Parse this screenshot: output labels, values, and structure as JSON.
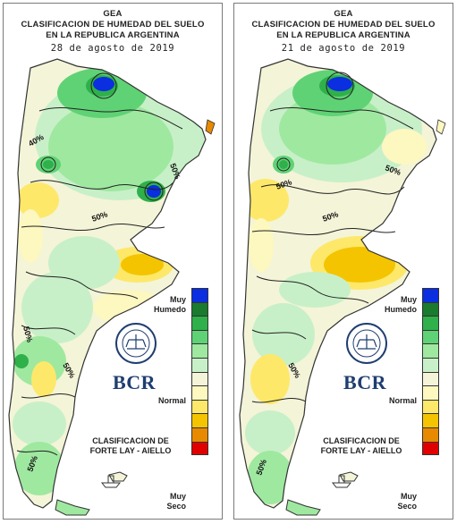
{
  "legend": {
    "colors": [
      "#0a2ee0",
      "#1a7a2e",
      "#2fb04a",
      "#5fd275",
      "#9fe8a0",
      "#c8f0c8",
      "#f4f4d8",
      "#fdf7c0",
      "#fde86a",
      "#f4c400",
      "#e88a00",
      "#e00000"
    ],
    "label_humid": [
      "Muy",
      "Humedo"
    ],
    "label_normal": "Normal",
    "label_dry": [
      "Muy",
      "Seco"
    ]
  },
  "panels": [
    {
      "org": "GEA",
      "title_line1": "CLASIFICACION DE HUMEDAD DEL SUELO",
      "title_line2": "EN LA REPUBLICA ARGENTINA",
      "date": "28 de agosto de 2019",
      "contour_labels": [
        "40%",
        "50%",
        "50%",
        "50%",
        "50%",
        "50%"
      ],
      "logo_text": "BCR",
      "classification": [
        "CLASIFICACION DE",
        "FORTE LAY - AIELLO"
      ]
    },
    {
      "org": "GEA",
      "title_line1": "CLASIFICACION DE HUMEDAD DEL SUELO",
      "title_line2": "EN LA REPUBLICA ARGENTINA",
      "date": "21 de agosto de 2019",
      "contour_labels": [
        "50%",
        "50%",
        "50%",
        "50%",
        "50%"
      ],
      "logo_text": "BCR",
      "classification": [
        "CLASIFICACION DE",
        "FORTE LAY - AIELLO"
      ]
    }
  ]
}
